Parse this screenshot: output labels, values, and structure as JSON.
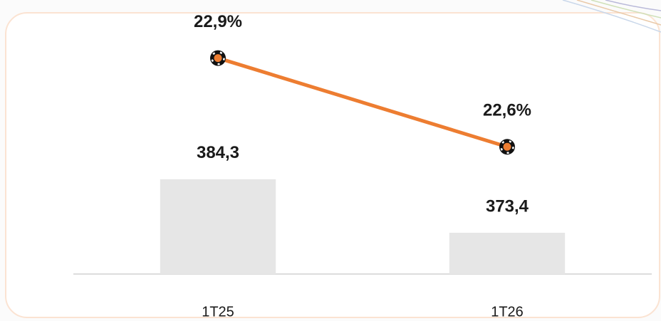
{
  "chart_data": {
    "type": "bar_line",
    "categories": [
      "1T25",
      "1T26"
    ],
    "series": [
      {
        "type": "bar",
        "color": "#e6e6e6",
        "values": [
          384.3,
          373.4
        ],
        "value_labels": [
          "384,3",
          "373,4"
        ]
      },
      {
        "type": "line",
        "axis": "y2",
        "color": "#ed7d31",
        "values": [
          22.9,
          22.6
        ],
        "value_labels": [
          "22,9%",
          "22,6%"
        ]
      }
    ],
    "ylim": [
      365,
      415
    ],
    "y2lim": [
      22.17,
      23.0
    ]
  }
}
